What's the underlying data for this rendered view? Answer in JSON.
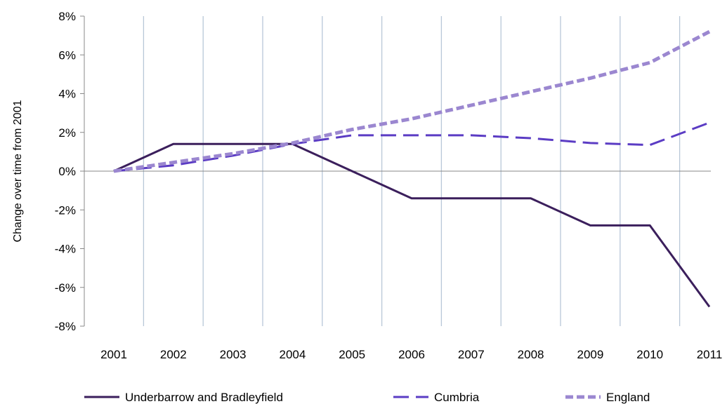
{
  "chart_data": {
    "type": "line",
    "title": "",
    "xlabel": "",
    "ylabel": "Change over  time from 2001",
    "categories": [
      "2001",
      "2002",
      "2003",
      "2004",
      "2005",
      "2006",
      "2007",
      "2008",
      "2009",
      "2010",
      "2011"
    ],
    "ylim": [
      -8,
      8
    ],
    "yticks": [
      8,
      6,
      4,
      2,
      0,
      -2,
      -4,
      -6,
      -8
    ],
    "ytick_labels": [
      "8%",
      "6%",
      "4%",
      "2%",
      "0%",
      "-2%",
      "-4%",
      "-6%",
      "-8%"
    ],
    "grid": "vertical",
    "legend_position": "bottom",
    "series": [
      {
        "name": "Underbarrow and Bradleyfield",
        "color": "#3b1f5c",
        "dash": "solid",
        "values": [
          0,
          1.4,
          1.4,
          1.4,
          0,
          -1.4,
          -1.4,
          -1.4,
          -2.8,
          -2.8,
          -7.0
        ]
      },
      {
        "name": "Cumbria",
        "color": "#5b3cc4",
        "dash": "long-dash",
        "values": [
          0,
          0.3,
          0.8,
          1.4,
          1.85,
          1.85,
          1.85,
          1.7,
          1.45,
          1.35,
          2.5
        ]
      },
      {
        "name": "England",
        "color": "#9b87d0",
        "dash": "short-dash",
        "values": [
          0,
          0.45,
          0.9,
          1.45,
          2.15,
          2.7,
          3.4,
          4.1,
          4.8,
          5.6,
          7.2
        ]
      }
    ]
  }
}
